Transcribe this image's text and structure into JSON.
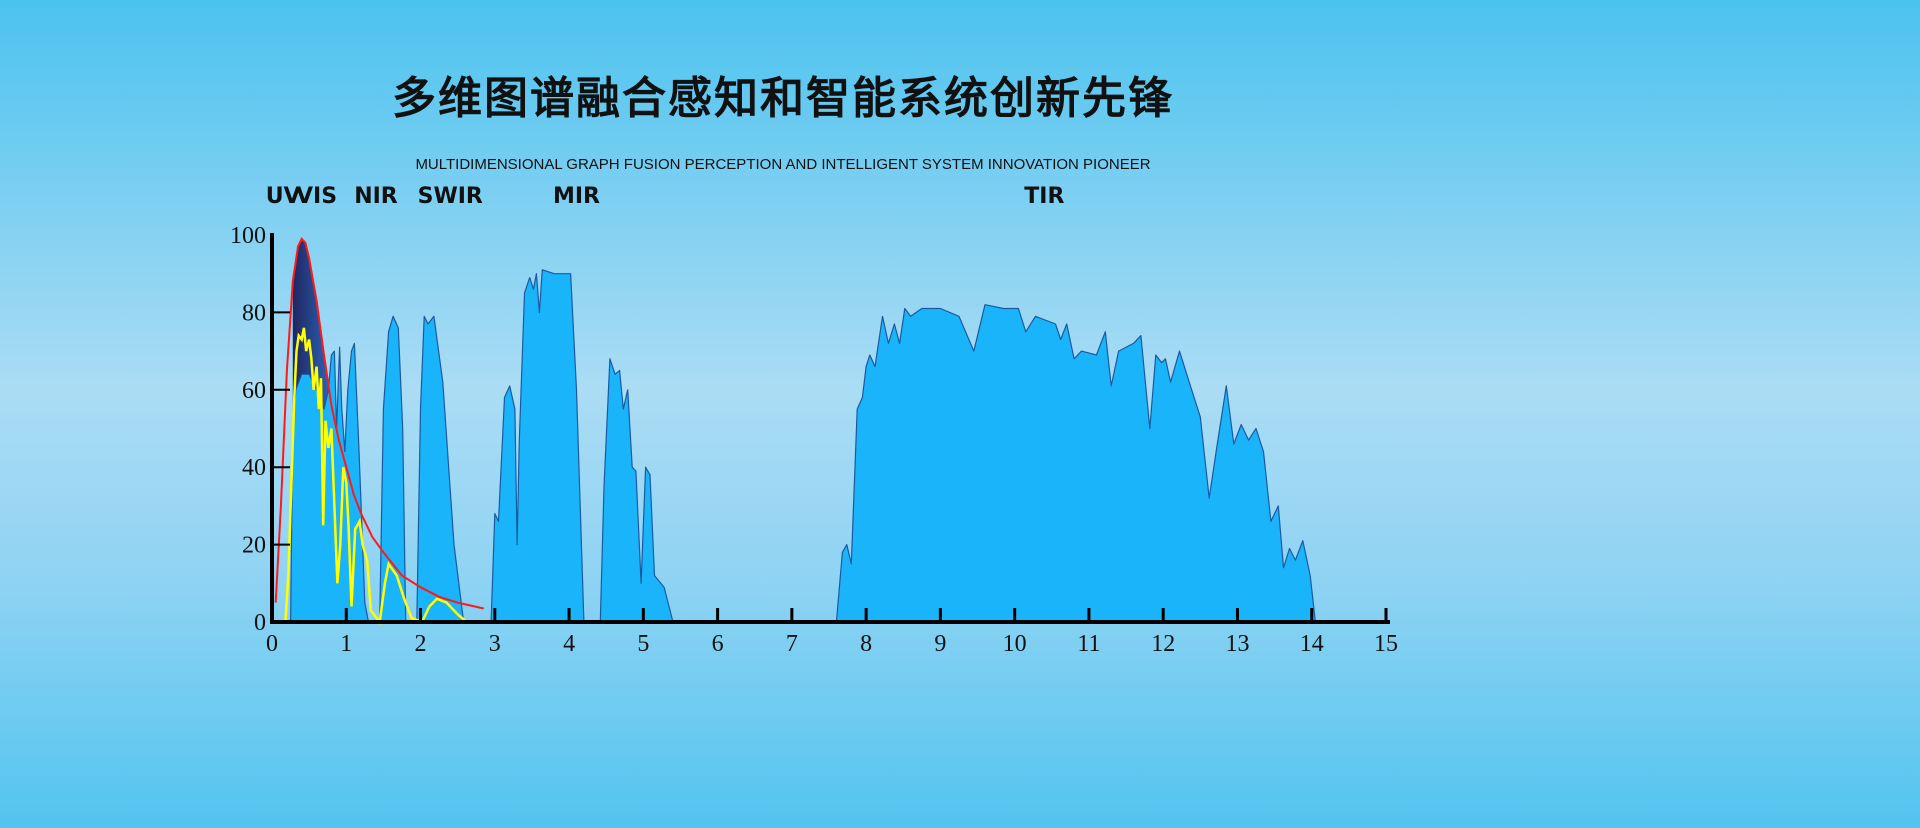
{
  "header": {
    "title": "多维图谱融合感知和智能系统创新先锋",
    "subtitle": "MULTIDIMENSIONAL GRAPH FUSION PERCEPTION AND INTELLIGENT SYSTEM INNOVATION PIONEER"
  },
  "colors": {
    "transmission": "#1ab4fb",
    "blackbody": "#ff1a1a",
    "solar": "#ffff00",
    "axis": "#000000"
  },
  "chart_data": {
    "type": "area",
    "title": "",
    "xlabel": "",
    "ylabel": "",
    "xlim": [
      0,
      15
    ],
    "ylim": [
      0,
      100
    ],
    "x_ticks": [
      "0",
      "1",
      "2",
      "3",
      "4",
      "5",
      "6",
      "7",
      "8",
      "9",
      "10",
      "11",
      "12",
      "13",
      "14",
      "15"
    ],
    "y_ticks": [
      "0",
      "20",
      "40",
      "60",
      "80",
      "100"
    ],
    "grid": false,
    "band_labels": [
      {
        "label": "UV",
        "x": 0.15
      },
      {
        "label": "VIS",
        "x": 0.6
      },
      {
        "label": "NIR",
        "x": 1.4
      },
      {
        "label": "SWIR",
        "x": 2.4
      },
      {
        "label": "MIR",
        "x": 4.1
      },
      {
        "label": "TIR",
        "x": 10.4
      }
    ],
    "series": [
      {
        "type": "area",
        "color": "#1ab4fb",
        "points": [
          [
            0.25,
            0
          ],
          [
            0.28,
            50
          ],
          [
            0.32,
            60
          ],
          [
            0.4,
            64
          ],
          [
            0.5,
            64
          ],
          [
            0.6,
            60
          ],
          [
            0.7,
            55
          ],
          [
            0.76,
            60
          ],
          [
            0.8,
            69
          ],
          [
            0.84,
            70
          ],
          [
            0.87,
            50
          ],
          [
            0.91,
            71
          ],
          [
            0.94,
            55
          ],
          [
            0.98,
            44
          ],
          [
            1.02,
            60
          ],
          [
            1.07,
            70
          ],
          [
            1.11,
            72
          ],
          [
            1.17,
            45
          ],
          [
            1.25,
            5
          ],
          [
            1.3,
            0
          ],
          [
            1.45,
            0
          ],
          [
            1.5,
            55
          ],
          [
            1.57,
            75
          ],
          [
            1.63,
            79
          ],
          [
            1.7,
            76
          ],
          [
            1.76,
            50
          ],
          [
            1.8,
            0
          ],
          [
            1.95,
            0
          ],
          [
            2.0,
            55
          ],
          [
            2.05,
            79
          ],
          [
            2.1,
            77
          ],
          [
            2.18,
            79
          ],
          [
            2.3,
            62
          ],
          [
            2.45,
            20
          ],
          [
            2.58,
            0
          ],
          [
            2.95,
            0
          ],
          [
            3.0,
            28
          ],
          [
            3.05,
            26
          ],
          [
            3.13,
            58
          ],
          [
            3.2,
            61
          ],
          [
            3.27,
            55
          ],
          [
            3.3,
            20
          ],
          [
            3.33,
            47
          ],
          [
            3.4,
            85
          ],
          [
            3.47,
            89
          ],
          [
            3.52,
            86
          ],
          [
            3.56,
            90
          ],
          [
            3.6,
            80
          ],
          [
            3.64,
            91
          ],
          [
            3.8,
            90
          ],
          [
            4.02,
            90
          ],
          [
            4.1,
            60
          ],
          [
            4.2,
            0
          ],
          [
            4.42,
            0
          ],
          [
            4.47,
            35
          ],
          [
            4.55,
            68
          ],
          [
            4.62,
            64
          ],
          [
            4.68,
            65
          ],
          [
            4.73,
            55
          ],
          [
            4.79,
            60
          ],
          [
            4.85,
            40
          ],
          [
            4.9,
            39
          ],
          [
            4.97,
            10
          ],
          [
            5.03,
            40
          ],
          [
            5.09,
            38
          ],
          [
            5.15,
            12
          ],
          [
            5.28,
            9
          ],
          [
            5.4,
            0
          ],
          [
            7.6,
            0
          ],
          [
            7.68,
            18
          ],
          [
            7.74,
            20
          ],
          [
            7.8,
            15
          ],
          [
            7.88,
            55
          ],
          [
            7.95,
            58
          ],
          [
            8.0,
            66
          ],
          [
            8.05,
            69
          ],
          [
            8.12,
            66
          ],
          [
            8.22,
            79
          ],
          [
            8.3,
            72
          ],
          [
            8.38,
            77
          ],
          [
            8.45,
            72
          ],
          [
            8.52,
            81
          ],
          [
            8.6,
            79
          ],
          [
            8.75,
            81
          ],
          [
            9.0,
            81
          ],
          [
            9.25,
            79
          ],
          [
            9.45,
            70
          ],
          [
            9.6,
            82
          ],
          [
            9.85,
            81
          ],
          [
            10.05,
            81
          ],
          [
            10.15,
            75
          ],
          [
            10.28,
            79
          ],
          [
            10.55,
            77
          ],
          [
            10.62,
            73
          ],
          [
            10.7,
            77
          ],
          [
            10.8,
            68
          ],
          [
            10.9,
            70
          ],
          [
            11.1,
            69
          ],
          [
            11.22,
            75
          ],
          [
            11.3,
            61
          ],
          [
            11.4,
            70
          ],
          [
            11.6,
            72
          ],
          [
            11.7,
            74
          ],
          [
            11.82,
            50
          ],
          [
            11.9,
            69
          ],
          [
            11.98,
            67
          ],
          [
            12.03,
            68
          ],
          [
            12.1,
            62
          ],
          [
            12.22,
            70
          ],
          [
            12.35,
            62
          ],
          [
            12.5,
            53
          ],
          [
            12.62,
            32
          ],
          [
            12.72,
            45
          ],
          [
            12.85,
            61
          ],
          [
            12.95,
            46
          ],
          [
            13.05,
            51
          ],
          [
            13.15,
            47
          ],
          [
            13.25,
            50
          ],
          [
            13.35,
            44
          ],
          [
            13.45,
            26
          ],
          [
            13.55,
            30
          ],
          [
            13.62,
            14
          ],
          [
            13.7,
            19
          ],
          [
            13.78,
            16
          ],
          [
            13.88,
            21
          ],
          [
            13.98,
            12
          ],
          [
            14.05,
            0
          ]
        ]
      },
      {
        "type": "line",
        "color": "#ff1a1a",
        "points": [
          [
            0.05,
            5
          ],
          [
            0.12,
            30
          ],
          [
            0.2,
            65
          ],
          [
            0.28,
            88
          ],
          [
            0.35,
            97
          ],
          [
            0.4,
            99
          ],
          [
            0.45,
            98
          ],
          [
            0.5,
            94
          ],
          [
            0.6,
            83
          ],
          [
            0.7,
            69
          ],
          [
            0.8,
            56
          ],
          [
            0.9,
            47
          ],
          [
            1.0,
            40
          ],
          [
            1.1,
            33
          ],
          [
            1.2,
            28
          ],
          [
            1.35,
            22
          ],
          [
            1.5,
            18
          ],
          [
            1.75,
            12
          ],
          [
            2.0,
            9
          ],
          [
            2.25,
            6.5
          ],
          [
            2.5,
            5
          ],
          [
            2.85,
            3.5
          ]
        ]
      },
      {
        "type": "line",
        "color": "#ffff00",
        "points": [
          [
            0.18,
            0
          ],
          [
            0.22,
            12
          ],
          [
            0.26,
            35
          ],
          [
            0.3,
            58
          ],
          [
            0.33,
            70
          ],
          [
            0.36,
            74
          ],
          [
            0.4,
            73
          ],
          [
            0.43,
            76
          ],
          [
            0.46,
            70
          ],
          [
            0.5,
            73
          ],
          [
            0.53,
            68
          ],
          [
            0.56,
            60
          ],
          [
            0.6,
            66
          ],
          [
            0.63,
            55
          ],
          [
            0.66,
            63
          ],
          [
            0.69,
            25
          ],
          [
            0.72,
            52
          ],
          [
            0.76,
            45
          ],
          [
            0.8,
            50
          ],
          [
            0.84,
            30
          ],
          [
            0.88,
            10
          ],
          [
            0.92,
            20
          ],
          [
            0.96,
            40
          ],
          [
            1.0,
            36
          ],
          [
            1.03,
            25
          ],
          [
            1.07,
            4
          ],
          [
            1.12,
            24
          ],
          [
            1.18,
            26
          ],
          [
            1.22,
            20
          ],
          [
            1.28,
            16
          ],
          [
            1.33,
            3
          ],
          [
            1.45,
            0
          ],
          [
            1.52,
            10
          ],
          [
            1.57,
            15
          ],
          [
            1.68,
            12
          ],
          [
            1.78,
            6
          ],
          [
            1.88,
            1
          ],
          [
            2.02,
            0
          ],
          [
            2.12,
            4
          ],
          [
            2.22,
            6
          ],
          [
            2.35,
            5
          ],
          [
            2.5,
            2
          ],
          [
            2.62,
            0
          ]
        ]
      }
    ]
  }
}
